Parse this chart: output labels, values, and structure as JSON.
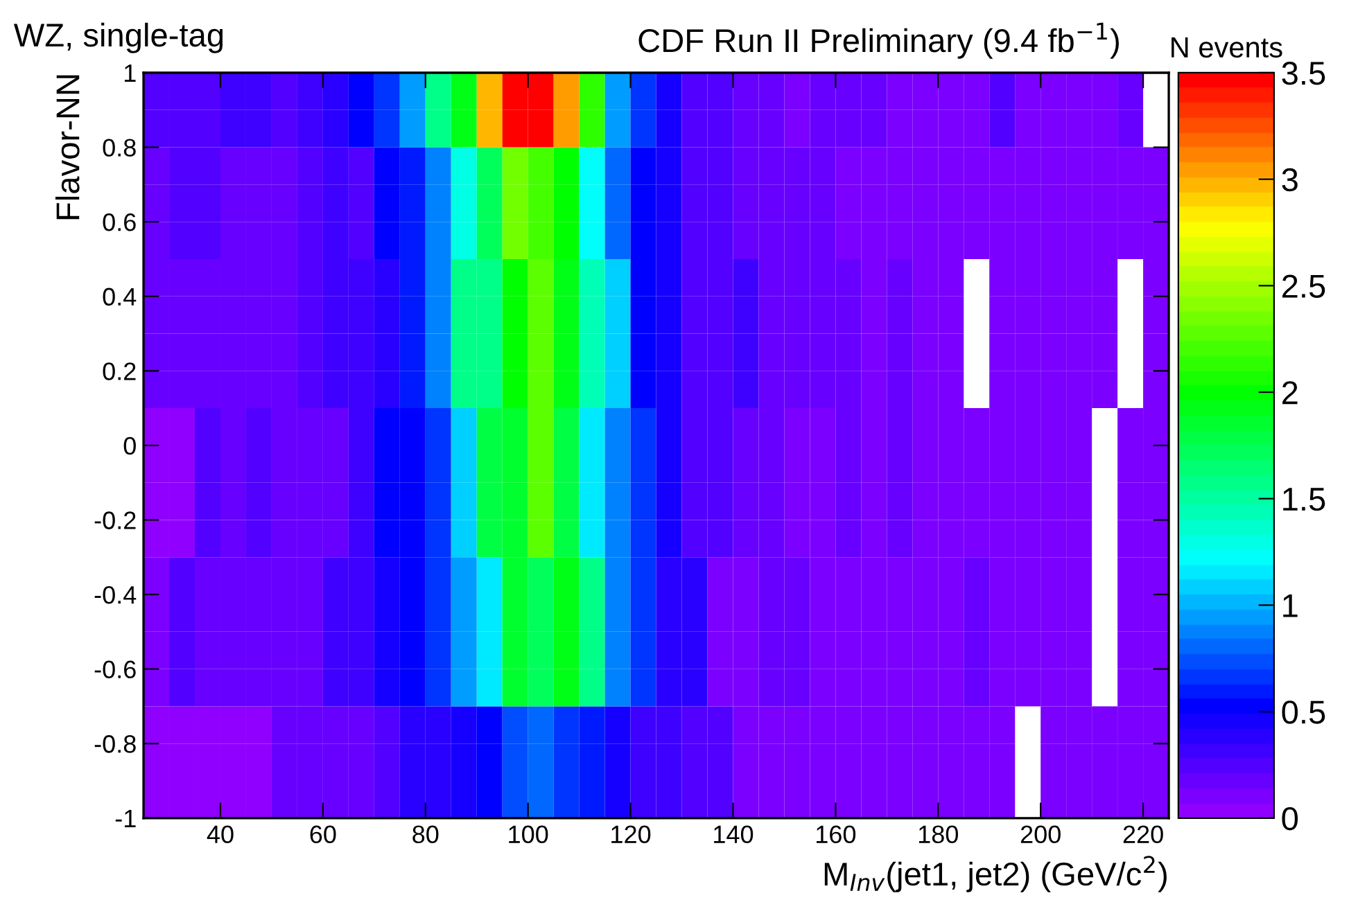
{
  "chart_data": {
    "type": "heatmap",
    "title": "CDF Run II Preliminary (9.4 fb$^{−1}$)",
    "xlabel": "M$_{Inv}$(jet1, jet2) (GeV/c$^{2}$)",
    "ylabel": "Flavor-NN",
    "clabel": "N events",
    "annotations": [
      "WZ, single-tag"
    ],
    "cells": [
      [
        0.22,
        0.22,
        0.22,
        0.33,
        0.33,
        0.23,
        0.28,
        0.38,
        0.5,
        0.68,
        0.92,
        1.55,
        1.9,
        2.95,
        3.5,
        3.5,
        3.05,
        2.1,
        0.97,
        0.68,
        0.42,
        0.25,
        0.25,
        0.18,
        0.18,
        0.08,
        0.18,
        0.16,
        0.16,
        0.12,
        0.12,
        0.12,
        0.12,
        0.22,
        0.08,
        0.08,
        0.08,
        0.08,
        0.18,
        null
      ],
      [
        0.22,
        0.22,
        0.22,
        0.33,
        0.33,
        0.23,
        0.28,
        0.38,
        0.5,
        0.68,
        0.92,
        1.55,
        1.9,
        2.95,
        3.5,
        3.5,
        3.05,
        2.1,
        0.97,
        0.68,
        0.42,
        0.25,
        0.25,
        0.18,
        0.18,
        0.08,
        0.18,
        0.16,
        0.16,
        0.12,
        0.12,
        0.12,
        0.12,
        0.22,
        0.08,
        0.08,
        0.08,
        0.08,
        0.18,
        null
      ],
      [
        0.15,
        0.22,
        0.22,
        0.15,
        0.2,
        0.2,
        0.22,
        0.28,
        0.25,
        0.5,
        0.6,
        0.9,
        1.3,
        1.7,
        2.35,
        2.2,
        2.0,
        1.2,
        0.82,
        0.5,
        0.42,
        0.25,
        0.25,
        0.18,
        0.18,
        0.16,
        0.16,
        0.08,
        0.08,
        0.08,
        0.08,
        0.08,
        0.08,
        0.08,
        0.08,
        0.08,
        0.08,
        0.08,
        0.08,
        0.08
      ],
      [
        0.15,
        0.22,
        0.22,
        0.15,
        0.2,
        0.2,
        0.22,
        0.28,
        0.25,
        0.5,
        0.6,
        0.9,
        1.3,
        1.7,
        2.35,
        2.2,
        2.0,
        1.2,
        0.82,
        0.5,
        0.42,
        0.25,
        0.25,
        0.18,
        0.18,
        0.16,
        0.16,
        0.08,
        0.08,
        0.08,
        0.08,
        0.08,
        0.08,
        0.08,
        0.08,
        0.08,
        0.08,
        0.08,
        0.08,
        0.08
      ],
      [
        0.15,
        0.22,
        0.22,
        0.15,
        0.2,
        0.2,
        0.22,
        0.28,
        0.25,
        0.5,
        0.6,
        0.9,
        1.3,
        1.7,
        2.35,
        2.2,
        2.0,
        1.2,
        0.82,
        0.5,
        0.42,
        0.25,
        0.25,
        0.18,
        0.18,
        0.16,
        0.16,
        0.08,
        0.08,
        0.08,
        0.08,
        0.08,
        0.08,
        0.08,
        0.08,
        0.08,
        0.08,
        0.08,
        0.08,
        0.08
      ],
      [
        0.15,
        0.15,
        0.15,
        0.15,
        0.2,
        0.2,
        0.22,
        0.3,
        0.32,
        0.38,
        0.6,
        0.9,
        1.55,
        1.55,
        2.0,
        2.25,
        1.9,
        1.4,
        1.05,
        0.5,
        0.42,
        0.25,
        0.25,
        0.28,
        0.18,
        0.16,
        0.16,
        0.16,
        0.08,
        0.18,
        0.08,
        0.08,
        null,
        0.08,
        0.08,
        0.08,
        0.08,
        0.08,
        null,
        0.08
      ],
      [
        0.15,
        0.15,
        0.15,
        0.15,
        0.2,
        0.2,
        0.22,
        0.3,
        0.32,
        0.38,
        0.6,
        0.9,
        1.55,
        1.55,
        2.0,
        2.25,
        1.9,
        1.4,
        1.05,
        0.5,
        0.42,
        0.25,
        0.25,
        0.28,
        0.18,
        0.16,
        0.16,
        0.16,
        0.08,
        0.18,
        0.08,
        0.08,
        null,
        0.08,
        0.08,
        0.08,
        0.08,
        0.08,
        null,
        0.08
      ],
      [
        0.15,
        0.15,
        0.15,
        0.15,
        0.2,
        0.2,
        0.22,
        0.3,
        0.32,
        0.38,
        0.6,
        0.9,
        1.55,
        1.55,
        2.0,
        2.25,
        1.9,
        1.4,
        1.05,
        0.5,
        0.42,
        0.25,
        0.25,
        0.28,
        0.18,
        0.16,
        0.16,
        0.16,
        0.08,
        0.18,
        0.08,
        0.08,
        null,
        0.08,
        0.08,
        0.08,
        0.08,
        0.08,
        null,
        0.08
      ],
      [
        0.15,
        0.15,
        0.15,
        0.15,
        0.2,
        0.2,
        0.22,
        0.3,
        0.32,
        0.38,
        0.6,
        0.9,
        1.55,
        1.55,
        2.0,
        2.25,
        1.9,
        1.4,
        1.05,
        0.5,
        0.42,
        0.25,
        0.25,
        0.28,
        0.18,
        0.16,
        0.16,
        0.16,
        0.08,
        0.18,
        0.08,
        0.08,
        null,
        0.08,
        0.08,
        0.08,
        0.08,
        0.08,
        null,
        0.08
      ],
      [
        0.04,
        0.04,
        0.25,
        0.15,
        0.22,
        0.15,
        0.18,
        0.18,
        0.32,
        0.5,
        0.55,
        0.65,
        1.05,
        1.75,
        1.85,
        2.25,
        1.75,
        1.15,
        0.9,
        0.65,
        0.42,
        0.25,
        0.25,
        0.18,
        0.18,
        0.08,
        0.08,
        0.18,
        0.08,
        0.18,
        0.08,
        0.08,
        0.08,
        0.08,
        0.08,
        0.08,
        0.08,
        null,
        0.08,
        0.08
      ],
      [
        0.04,
        0.04,
        0.25,
        0.15,
        0.22,
        0.15,
        0.18,
        0.18,
        0.32,
        0.5,
        0.55,
        0.65,
        1.05,
        1.75,
        1.85,
        2.25,
        1.75,
        1.15,
        0.9,
        0.65,
        0.42,
        0.25,
        0.25,
        0.18,
        0.18,
        0.08,
        0.08,
        0.18,
        0.08,
        0.18,
        0.08,
        0.08,
        0.08,
        0.08,
        0.08,
        0.08,
        0.08,
        null,
        0.08,
        0.08
      ],
      [
        0.04,
        0.04,
        0.25,
        0.15,
        0.22,
        0.15,
        0.18,
        0.18,
        0.32,
        0.5,
        0.55,
        0.65,
        1.05,
        1.75,
        1.85,
        2.25,
        1.75,
        1.15,
        0.9,
        0.65,
        0.42,
        0.25,
        0.25,
        0.18,
        0.18,
        0.08,
        0.08,
        0.18,
        0.08,
        0.18,
        0.08,
        0.08,
        0.08,
        0.08,
        0.08,
        0.08,
        0.08,
        null,
        0.08,
        0.08
      ],
      [
        0.04,
        0.04,
        0.25,
        0.15,
        0.22,
        0.15,
        0.18,
        0.18,
        0.32,
        0.5,
        0.55,
        0.65,
        1.05,
        1.75,
        1.85,
        2.25,
        1.75,
        1.15,
        0.9,
        0.65,
        0.42,
        0.25,
        0.25,
        0.18,
        0.18,
        0.08,
        0.08,
        0.18,
        0.08,
        0.18,
        0.08,
        0.08,
        0.08,
        0.08,
        0.08,
        0.08,
        0.08,
        null,
        0.08,
        0.08
      ],
      [
        0.08,
        0.25,
        0.17,
        0.17,
        0.17,
        0.17,
        0.17,
        0.3,
        0.3,
        0.45,
        0.5,
        0.65,
        0.98,
        1.15,
        1.85,
        1.7,
        1.95,
        1.55,
        0.9,
        0.65,
        0.4,
        0.38,
        0.12,
        0.12,
        0.18,
        0.18,
        0.08,
        0.08,
        0.08,
        0.08,
        0.08,
        0.08,
        0.18,
        0.08,
        0.08,
        0.08,
        0.08,
        null,
        0.08,
        0.08
      ],
      [
        0.08,
        0.25,
        0.17,
        0.17,
        0.17,
        0.17,
        0.17,
        0.3,
        0.3,
        0.45,
        0.5,
        0.65,
        0.98,
        1.15,
        1.85,
        1.7,
        1.95,
        1.55,
        0.9,
        0.65,
        0.4,
        0.38,
        0.12,
        0.12,
        0.18,
        0.18,
        0.08,
        0.08,
        0.08,
        0.08,
        0.08,
        0.08,
        0.18,
        0.08,
        0.08,
        0.08,
        0.08,
        null,
        0.08,
        0.08
      ],
      [
        0.08,
        0.25,
        0.17,
        0.17,
        0.17,
        0.17,
        0.17,
        0.3,
        0.3,
        0.45,
        0.5,
        0.65,
        0.98,
        1.15,
        1.85,
        1.7,
        1.95,
        1.55,
        0.9,
        0.65,
        0.4,
        0.38,
        0.12,
        0.12,
        0.18,
        0.18,
        0.08,
        0.08,
        0.08,
        0.08,
        0.08,
        0.08,
        0.18,
        0.08,
        0.08,
        0.08,
        0.08,
        null,
        0.08,
        0.08
      ],
      [
        0.08,
        0.25,
        0.17,
        0.17,
        0.17,
        0.17,
        0.17,
        0.3,
        0.3,
        0.45,
        0.5,
        0.65,
        0.98,
        1.15,
        1.85,
        1.7,
        1.95,
        1.55,
        0.9,
        0.65,
        0.4,
        0.38,
        0.12,
        0.12,
        0.18,
        0.18,
        0.08,
        0.08,
        0.08,
        0.08,
        0.08,
        0.08,
        0.18,
        0.08,
        0.08,
        0.08,
        0.08,
        null,
        0.08,
        0.08
      ],
      [
        0.06,
        0.06,
        0.04,
        0.04,
        0.03,
        0.16,
        0.2,
        0.17,
        0.16,
        0.25,
        0.38,
        0.4,
        0.45,
        0.5,
        0.7,
        0.78,
        0.68,
        0.6,
        0.45,
        0.3,
        0.3,
        0.22,
        0.22,
        0.08,
        0.08,
        0.08,
        0.08,
        0.08,
        0.08,
        0.08,
        0.08,
        0.08,
        0.08,
        0.08,
        null,
        0.08,
        0.08,
        0.08,
        0.08,
        0.08
      ],
      [
        0.06,
        0.06,
        0.04,
        0.04,
        0.03,
        0.16,
        0.2,
        0.17,
        0.16,
        0.25,
        0.38,
        0.4,
        0.45,
        0.5,
        0.7,
        0.78,
        0.68,
        0.6,
        0.45,
        0.3,
        0.3,
        0.22,
        0.22,
        0.08,
        0.08,
        0.08,
        0.08,
        0.08,
        0.08,
        0.08,
        0.08,
        0.08,
        0.08,
        0.08,
        null,
        0.08,
        0.08,
        0.08,
        0.08,
        0.08
      ],
      [
        0.06,
        0.06,
        0.04,
        0.04,
        0.03,
        0.16,
        0.2,
        0.17,
        0.16,
        0.25,
        0.38,
        0.4,
        0.45,
        0.5,
        0.7,
        0.78,
        0.68,
        0.6,
        0.45,
        0.3,
        0.3,
        0.22,
        0.22,
        0.08,
        0.08,
        0.08,
        0.08,
        0.08,
        0.08,
        0.08,
        0.08,
        0.08,
        0.08,
        0.08,
        null,
        0.08,
        0.08,
        0.08,
        0.08,
        0.08
      ]
    ],
    "xlim": [
      25,
      225
    ],
    "ylim": [
      -1,
      1
    ],
    "xticks": [
      40,
      60,
      80,
      100,
      120,
      140,
      160,
      180,
      200,
      220
    ],
    "yticks": [
      {
        "value": -1,
        "label": "-1"
      },
      {
        "value": -0.8,
        "label": "-0.8"
      },
      {
        "value": -0.6,
        "label": "-0.6"
      },
      {
        "value": -0.4,
        "label": "-0.4"
      },
      {
        "value": -0.2,
        "label": "-0.2"
      },
      0,
      0.2,
      0.4,
      0.6,
      0.8,
      1
    ],
    "clim": [
      0,
      3.5
    ],
    "cticks": [
      0,
      0.5,
      1,
      1.5,
      2,
      2.5,
      3,
      3.5
    ],
    "grid": false
  }
}
